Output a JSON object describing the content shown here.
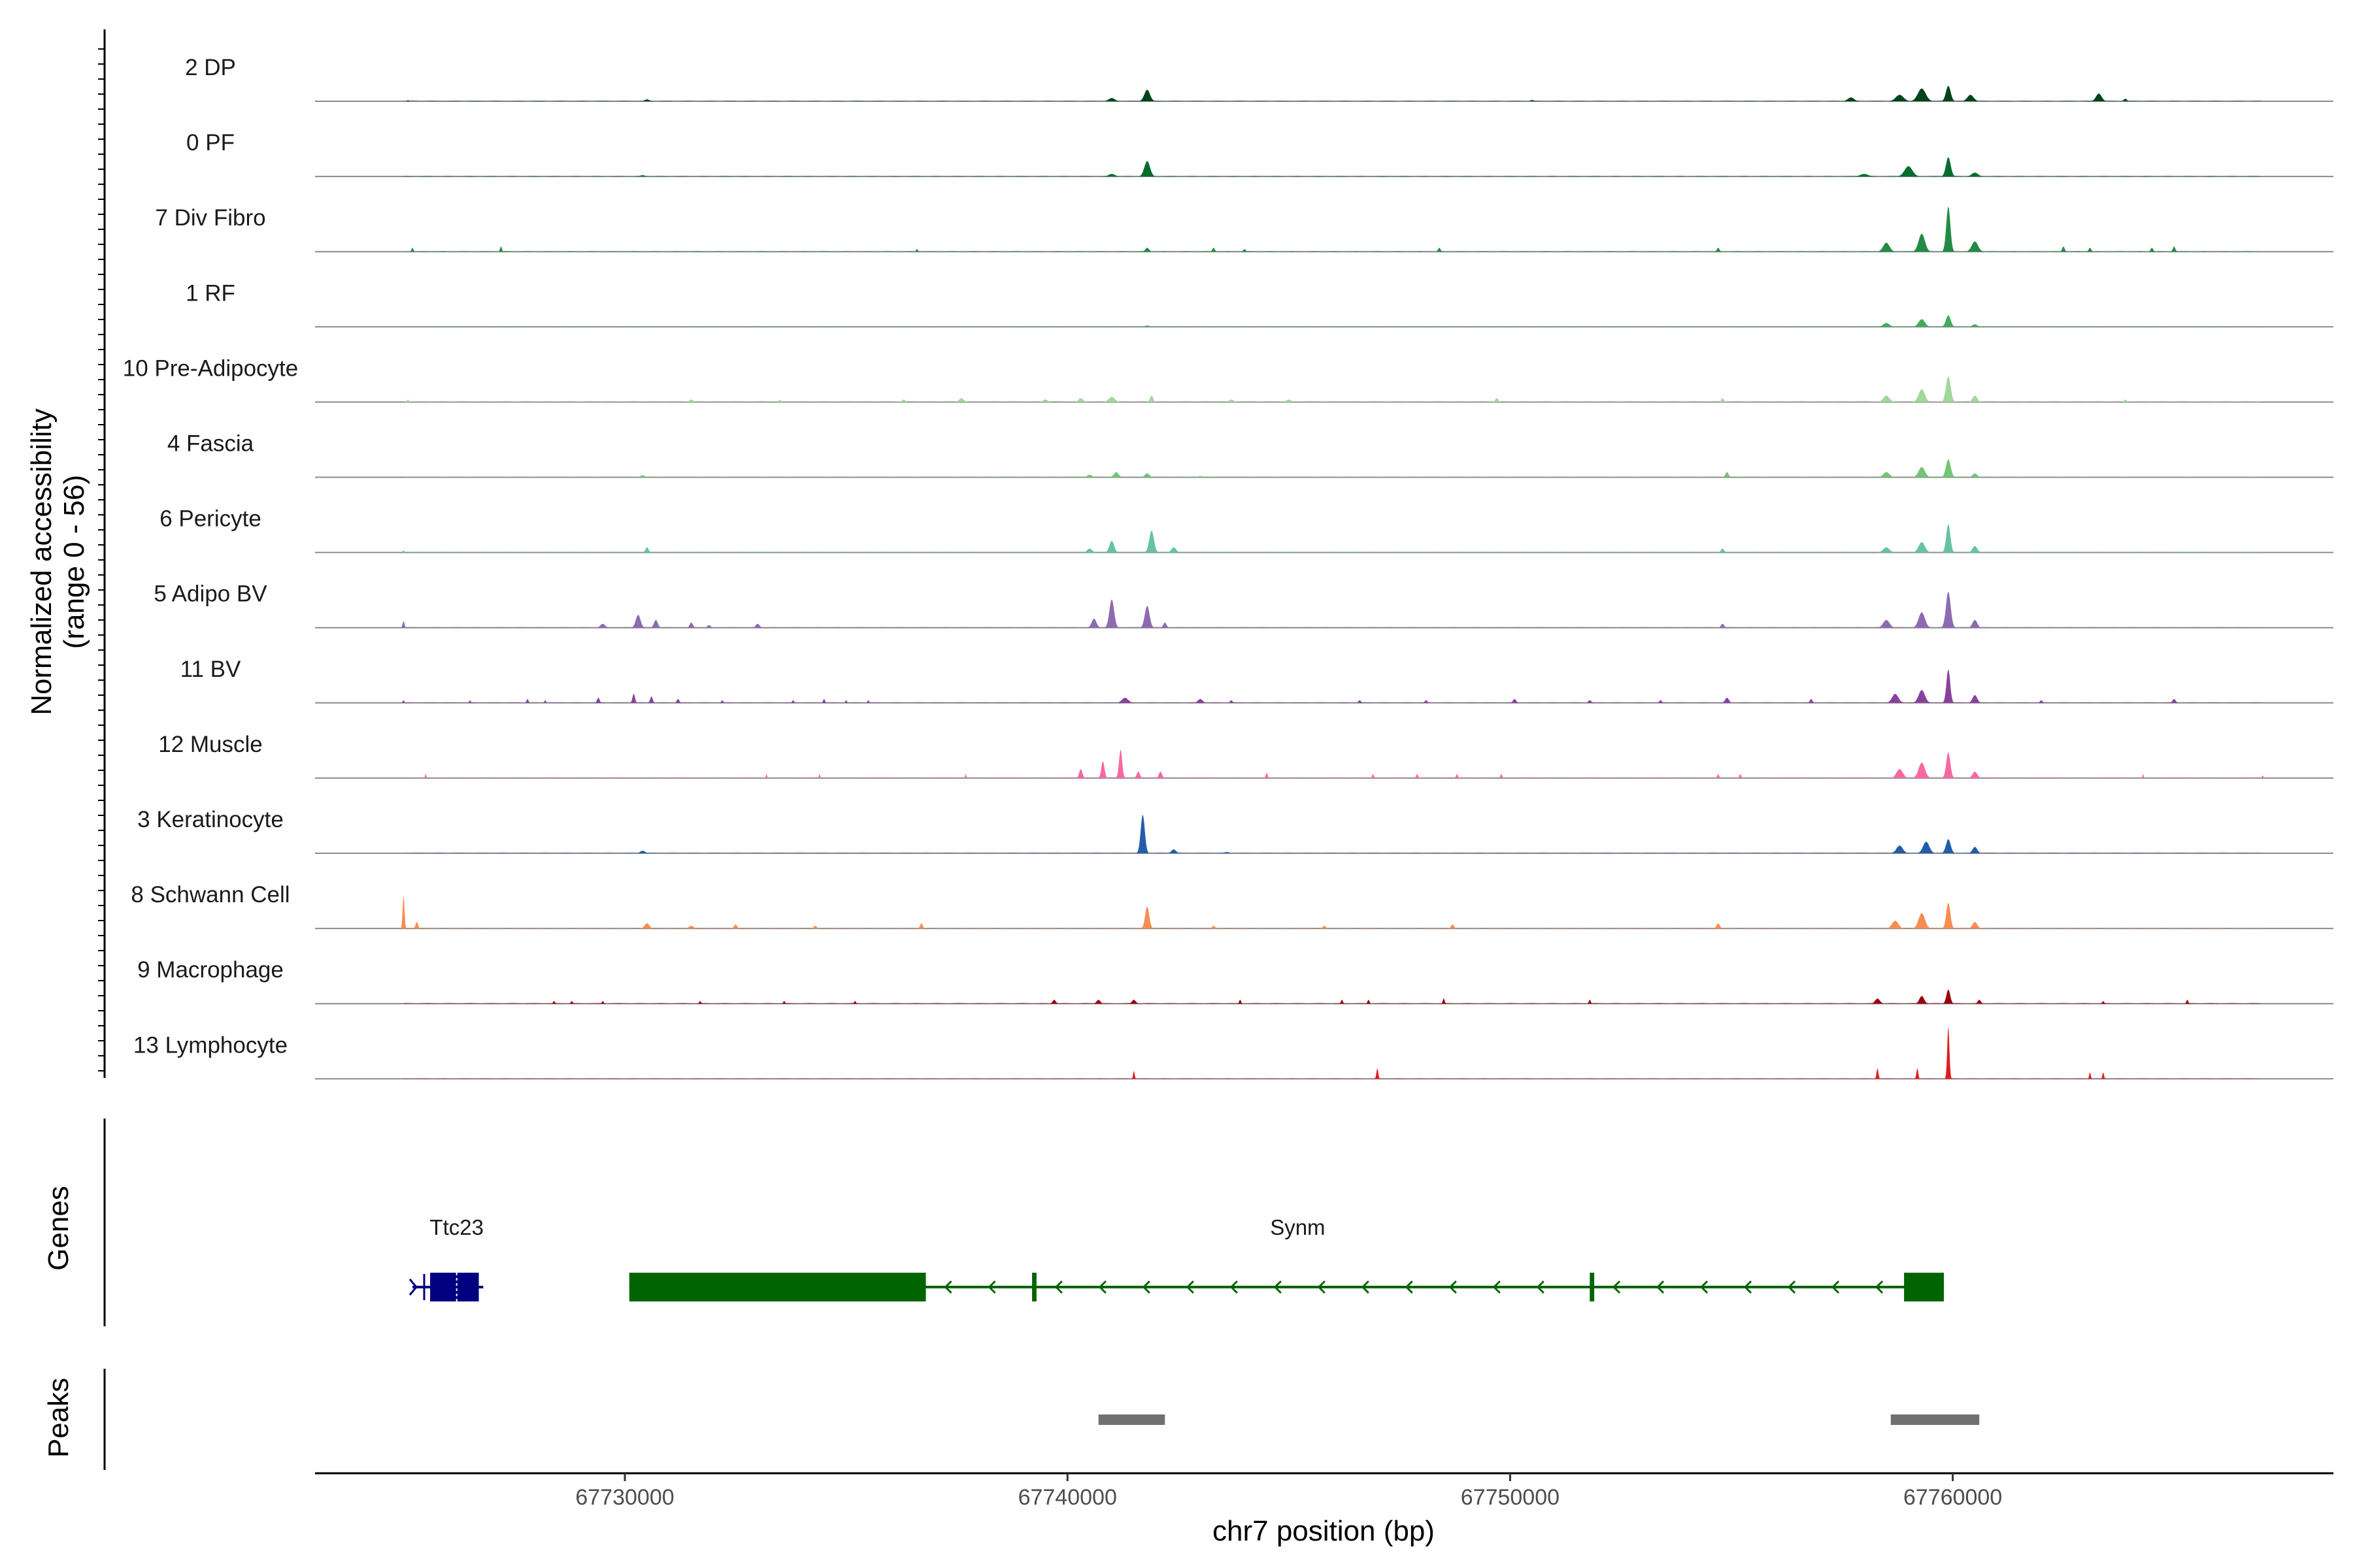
{
  "chart_data": {
    "type": "area",
    "title": "",
    "xlabel": "chr7 position (bp)",
    "ylabel_line1": "Normalized accessibility",
    "ylabel_line2": "(range 0 - 56)",
    "ylim": [
      0,
      56
    ],
    "xlim": [
      67723000,
      67768600
    ],
    "x_ticks": [
      67730000,
      67740000,
      67750000,
      67760000
    ],
    "x_tick_labels": [
      "67730000",
      "67740000",
      "67750000",
      "67760000"
    ],
    "series": [
      {
        "name": "2 DP",
        "color": "#00441b",
        "peaks": [
          [
            67725100,
            1,
            40
          ],
          [
            67730500,
            1.5,
            150
          ],
          [
            67741000,
            2.5,
            200
          ],
          [
            67741800,
            9,
            180
          ],
          [
            67750500,
            1,
            100
          ],
          [
            67757700,
            3,
            200
          ],
          [
            67758800,
            5,
            250
          ],
          [
            67759300,
            10,
            250
          ],
          [
            67759900,
            12,
            150
          ],
          [
            67760400,
            5,
            200
          ],
          [
            67763300,
            6,
            180
          ],
          [
            67763900,
            2,
            100
          ]
        ]
      },
      {
        "name": "0 PF",
        "color": "#006d2c",
        "peaks": [
          [
            67730400,
            1,
            150
          ],
          [
            67741000,
            2,
            200
          ],
          [
            67741800,
            12,
            180
          ],
          [
            67758000,
            2,
            250
          ],
          [
            67759000,
            8,
            250
          ],
          [
            67759900,
            15,
            150
          ],
          [
            67760500,
            3,
            200
          ]
        ]
      },
      {
        "name": "7 Div Fibro",
        "color": "#238b45",
        "peaks": [
          [
            67725200,
            3,
            60
          ],
          [
            67727200,
            4,
            60
          ],
          [
            67736600,
            2,
            60
          ],
          [
            67741800,
            3,
            120
          ],
          [
            67743300,
            3,
            80
          ],
          [
            67744000,
            2,
            80
          ],
          [
            67748400,
            3,
            80
          ],
          [
            67754700,
            3,
            80
          ],
          [
            67758500,
            7,
            200
          ],
          [
            67759300,
            14,
            200
          ],
          [
            67759900,
            35,
            130
          ],
          [
            67760500,
            8,
            200
          ],
          [
            67762500,
            4,
            80
          ],
          [
            67763100,
            3,
            80
          ],
          [
            67764500,
            3,
            80
          ],
          [
            67765000,
            4,
            80
          ]
        ]
      },
      {
        "name": "1 RF",
        "color": "#41ab5d",
        "peaks": [
          [
            67741800,
            1,
            150
          ],
          [
            67758500,
            3,
            200
          ],
          [
            67759300,
            6,
            200
          ],
          [
            67759900,
            9,
            150
          ],
          [
            67760500,
            2,
            150
          ]
        ]
      },
      {
        "name": "10 Pre-Adipocyte",
        "color": "#a1d99b",
        "peaks": [
          [
            67725100,
            2,
            60
          ],
          [
            67731500,
            2,
            120
          ],
          [
            67733500,
            1.5,
            100
          ],
          [
            67736300,
            2,
            100
          ],
          [
            67737600,
            3,
            150
          ],
          [
            67739500,
            2,
            150
          ],
          [
            67740300,
            3,
            150
          ],
          [
            67741000,
            4,
            200
          ],
          [
            67741900,
            5,
            100
          ],
          [
            67743700,
            2,
            150
          ],
          [
            67745000,
            2,
            150
          ],
          [
            67749700,
            3,
            100
          ],
          [
            67754800,
            3,
            80
          ],
          [
            67758500,
            5,
            200
          ],
          [
            67759300,
            10,
            200
          ],
          [
            67759900,
            20,
            150
          ],
          [
            67760500,
            5,
            150
          ],
          [
            67763900,
            2,
            80
          ]
        ]
      },
      {
        "name": "4 Fascia",
        "color": "#74c476",
        "peaks": [
          [
            67730400,
            1.5,
            150
          ],
          [
            67740500,
            2,
            150
          ],
          [
            67741100,
            4,
            150
          ],
          [
            67741800,
            3,
            150
          ],
          [
            67743000,
            1,
            100
          ],
          [
            67754900,
            4,
            100
          ],
          [
            67758500,
            4,
            200
          ],
          [
            67759300,
            8,
            200
          ],
          [
            67759900,
            14,
            150
          ],
          [
            67760500,
            3,
            150
          ]
        ]
      },
      {
        "name": "6 Pericyte",
        "color": "#66c2a4",
        "peaks": [
          [
            67725000,
            1.5,
            60
          ],
          [
            67730500,
            4,
            100
          ],
          [
            67740500,
            3,
            150
          ],
          [
            67741000,
            9,
            150
          ],
          [
            67741900,
            17,
            150
          ],
          [
            67742400,
            4,
            150
          ],
          [
            67754800,
            3,
            100
          ],
          [
            67758500,
            4,
            200
          ],
          [
            67759300,
            8,
            200
          ],
          [
            67759900,
            22,
            130
          ],
          [
            67760500,
            5,
            150
          ]
        ]
      },
      {
        "name": "5 Adipo BV",
        "color": "#8c6bb1",
        "peaks": [
          [
            67725000,
            5,
            60
          ],
          [
            67729500,
            3,
            150
          ],
          [
            67730300,
            10,
            150
          ],
          [
            67730700,
            6,
            120
          ],
          [
            67731500,
            4,
            100
          ],
          [
            67731900,
            2,
            100
          ],
          [
            67733000,
            3,
            120
          ],
          [
            67740600,
            7,
            150
          ],
          [
            67741000,
            22,
            150
          ],
          [
            67741800,
            17,
            150
          ],
          [
            67742200,
            4,
            100
          ],
          [
            67754800,
            3,
            100
          ],
          [
            67758500,
            6,
            200
          ],
          [
            67759300,
            12,
            200
          ],
          [
            67759900,
            28,
            150
          ],
          [
            67760500,
            6,
            150
          ]
        ]
      },
      {
        "name": "11 BV",
        "color": "#88419d",
        "peaks": [
          [
            67725000,
            2,
            50
          ],
          [
            67726500,
            2,
            50
          ],
          [
            67727800,
            3,
            60
          ],
          [
            67728200,
            2,
            50
          ],
          [
            67729400,
            4,
            80
          ],
          [
            67730200,
            7,
            80
          ],
          [
            67730600,
            5,
            80
          ],
          [
            67731200,
            3,
            80
          ],
          [
            67732200,
            2,
            60
          ],
          [
            67733800,
            2,
            60
          ],
          [
            67734500,
            3,
            60
          ],
          [
            67735000,
            2,
            50
          ],
          [
            67735500,
            2,
            50
          ],
          [
            67741300,
            4,
            200
          ],
          [
            67743000,
            3,
            150
          ],
          [
            67743700,
            2,
            80
          ],
          [
            67746600,
            2,
            80
          ],
          [
            67748100,
            2,
            80
          ],
          [
            67750100,
            3,
            100
          ],
          [
            67751800,
            2,
            100
          ],
          [
            67753400,
            2,
            80
          ],
          [
            67754900,
            4,
            120
          ],
          [
            67756800,
            3,
            80
          ],
          [
            67758700,
            7,
            200
          ],
          [
            67759300,
            10,
            200
          ],
          [
            67759900,
            26,
            120
          ],
          [
            67760500,
            6,
            150
          ],
          [
            67762000,
            2,
            80
          ],
          [
            67765000,
            3,
            100
          ]
        ]
      },
      {
        "name": "12 Muscle",
        "color": "#f768a1",
        "peaks": [
          [
            67725500,
            3,
            40
          ],
          [
            67733200,
            3,
            40
          ],
          [
            67734400,
            3,
            40
          ],
          [
            67737700,
            3,
            40
          ],
          [
            67740300,
            7,
            100
          ],
          [
            67740800,
            13,
            100
          ],
          [
            67741200,
            22,
            100
          ],
          [
            67741600,
            5,
            100
          ],
          [
            67742100,
            5,
            100
          ],
          [
            67744500,
            4,
            60
          ],
          [
            67746900,
            3,
            60
          ],
          [
            67747900,
            3,
            60
          ],
          [
            67748800,
            3,
            60
          ],
          [
            67749800,
            3,
            60
          ],
          [
            67754700,
            3,
            60
          ],
          [
            67755200,
            3,
            60
          ],
          [
            67758800,
            7,
            200
          ],
          [
            67759300,
            12,
            200
          ],
          [
            67759900,
            20,
            130
          ],
          [
            67760500,
            5,
            150
          ],
          [
            67764300,
            3,
            40
          ],
          [
            67767000,
            2,
            40
          ]
        ]
      },
      {
        "name": "3 Keratinocyte",
        "color": "#225ea8",
        "peaks": [
          [
            67730400,
            2,
            150
          ],
          [
            67741700,
            30,
            130
          ],
          [
            67742400,
            3,
            150
          ],
          [
            67743600,
            1,
            150
          ],
          [
            67758800,
            6,
            200
          ],
          [
            67759400,
            9,
            200
          ],
          [
            67759900,
            11,
            150
          ],
          [
            67760500,
            5,
            150
          ]
        ]
      },
      {
        "name": "8 Schwann Cell",
        "color": "#f88d52",
        "peaks": [
          [
            67725000,
            25,
            60
          ],
          [
            67725300,
            5,
            80
          ],
          [
            67730500,
            4,
            150
          ],
          [
            67731500,
            2,
            150
          ],
          [
            67732500,
            3,
            100
          ],
          [
            67734300,
            2,
            100
          ],
          [
            67736700,
            4,
            80
          ],
          [
            67741800,
            17,
            130
          ],
          [
            67743300,
            2,
            100
          ],
          [
            67745800,
            2,
            100
          ],
          [
            67748700,
            3,
            100
          ],
          [
            67754700,
            4,
            100
          ],
          [
            67758700,
            6,
            200
          ],
          [
            67759300,
            12,
            200
          ],
          [
            67759900,
            20,
            130
          ],
          [
            67760500,
            5,
            150
          ]
        ]
      },
      {
        "name": "9 Macrophage",
        "color": "#99000d",
        "peaks": [
          [
            67728400,
            2,
            60
          ],
          [
            67728800,
            2,
            60
          ],
          [
            67729500,
            2,
            60
          ],
          [
            67731700,
            2,
            60
          ],
          [
            67733600,
            2,
            60
          ],
          [
            67735200,
            2,
            60
          ],
          [
            67739700,
            3,
            100
          ],
          [
            67740700,
            3,
            120
          ],
          [
            67741500,
            3,
            120
          ],
          [
            67743900,
            3,
            60
          ],
          [
            67746200,
            3,
            60
          ],
          [
            67746800,
            3,
            60
          ],
          [
            67748500,
            4,
            60
          ],
          [
            67751800,
            3,
            60
          ],
          [
            67758300,
            4,
            150
          ],
          [
            67759300,
            6,
            150
          ],
          [
            67759900,
            11,
            120
          ],
          [
            67760600,
            3,
            100
          ],
          [
            67763400,
            2,
            60
          ],
          [
            67765300,
            3,
            60
          ]
        ]
      },
      {
        "name": "13 Lymphocyte",
        "color": "#e31a1c",
        "peaks": [
          [
            67741500,
            6,
            50
          ],
          [
            67747000,
            8,
            60
          ],
          [
            67758300,
            8,
            60
          ],
          [
            67759200,
            8,
            60
          ],
          [
            67759900,
            40,
            70
          ],
          [
            67763100,
            5,
            50
          ],
          [
            67763400,
            5,
            50
          ]
        ]
      }
    ],
    "genes": [
      {
        "name": "Ttc23",
        "color": "#000080",
        "strand": "-",
        "start": 67725200,
        "end": 67726800,
        "exons": [
          [
            67725600,
            67726700
          ]
        ],
        "label_x": 67726200
      },
      {
        "name": "Synm",
        "color": "#006400",
        "strand": "-",
        "start": 67730100,
        "end": 67759800,
        "exons": [
          [
            67730100,
            67736800
          ],
          [
            67739200,
            67739300
          ],
          [
            67751800,
            67751900
          ],
          [
            67758900,
            67759800
          ]
        ],
        "label_x": 67745200
      }
    ],
    "peaks_track": [
      [
        67740700,
        67742200
      ],
      [
        67758600,
        67760600
      ]
    ],
    "side_labels": {
      "genes": "Genes",
      "peaks": "Peaks"
    }
  }
}
